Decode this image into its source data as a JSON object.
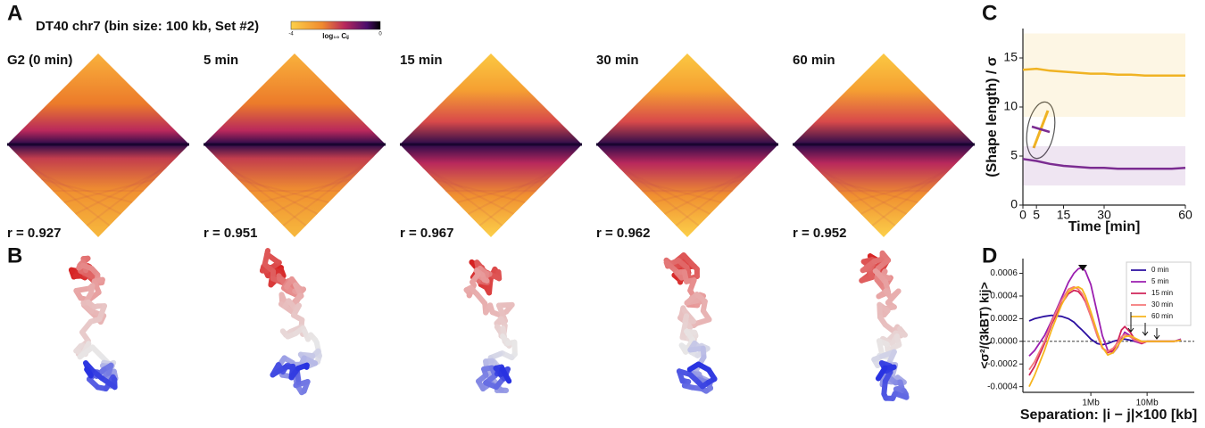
{
  "panel_labels": [
    "A",
    "B",
    "C",
    "D"
  ],
  "heatmaps": {
    "title": "DT40 chr7 (bin size: 100 kb, Set #2)",
    "colorbar": {
      "ticks": [
        -4,
        0
      ],
      "label": "log₁₀ Cᵢⱼ"
    },
    "maps": [
      {
        "label": "G2 (0 min)",
        "correlation": "r = 0.927"
      },
      {
        "label": "5 min",
        "correlation": "r = 0.951"
      },
      {
        "label": "15 min",
        "correlation": "r = 0.967"
      },
      {
        "label": "30 min",
        "correlation": "r = 0.962"
      },
      {
        "label": "60 min",
        "correlation": "r = 0.952"
      }
    ]
  },
  "chart_data": [
    {
      "type": "line",
      "ylabel": "(Shape length) / σ",
      "xlabel": "Time [min]",
      "x": [
        0,
        5,
        10,
        15,
        20,
        25,
        30,
        35,
        40,
        45,
        50,
        55,
        60
      ],
      "xlim": [
        0,
        60
      ],
      "xticks": [
        0,
        5,
        15,
        30,
        60
      ],
      "ylim": [
        0,
        18
      ],
      "yticks": [
        0,
        5,
        10,
        15
      ],
      "series": [
        {
          "color": "#f0b323",
          "values": [
            13.8,
            13.9,
            13.7,
            13.6,
            13.5,
            13.4,
            13.4,
            13.3,
            13.3,
            13.2,
            13.2,
            13.2,
            13.2
          ]
        },
        {
          "color": "#7b2c91",
          "values": [
            4.7,
            4.5,
            4.2,
            4.0,
            3.9,
            3.8,
            3.8,
            3.7,
            3.7,
            3.7,
            3.7,
            3.7,
            3.8
          ]
        }
      ]
    },
    {
      "type": "line",
      "ylabel": "<σ²/(3kBT) kij>",
      "xlabel": "Separation: |i − j|×100 [kb]",
      "xscale": "log",
      "x": [
        0.8,
        1,
        1.5,
        2,
        3,
        4,
        5,
        6,
        7,
        8,
        10,
        13,
        16,
        20,
        25,
        30,
        35,
        40,
        50,
        60,
        80,
        100,
        150,
        200,
        300,
        400
      ],
      "xlim": [
        0.62,
        690
      ],
      "xticks": [
        {
          "value": 10,
          "label": "1Mb"
        },
        {
          "value": 100,
          "label": "10Mb"
        }
      ],
      "ylim": [
        -0.00045,
        0.00073
      ],
      "yticks": [
        -0.0004,
        -0.0002,
        {
          "value": 0,
          "label": "0.0000"
        },
        0.0002,
        0.0004,
        0.0006
      ],
      "legend": "upper right",
      "series": [
        {
          "name": "0 min",
          "color": "#2b0fa0",
          "values": [
            0.00018,
            0.0002,
            0.00022,
            0.00023,
            0.00022,
            0.0002,
            0.00017,
            0.00013,
            0.0001,
            7e-05,
            2e-05,
            -2e-05,
            -3e-05,
            -2e-05,
            0,
            1e-05,
            2e-05,
            2e-05,
            1e-05,
            0,
            0,
            0,
            0,
            0,
            0,
            1e-05
          ]
        },
        {
          "name": "5 min",
          "color": "#9b1fb0",
          "values": [
            -0.00013,
            -8e-05,
            5e-05,
            0.00018,
            0.00038,
            0.00052,
            0.0006,
            0.00064,
            0.00065,
            0.00062,
            0.0005,
            0.00025,
            5e-05,
            -8e-05,
            -0.0001,
            -5e-05,
            3e-05,
            8e-05,
            5e-05,
            0,
            -2e-05,
            0,
            0,
            0,
            0,
            2e-05
          ]
        },
        {
          "name": "15 min",
          "color": "#d0245a",
          "values": [
            -0.0003,
            -0.00022,
            -2e-05,
            0.00015,
            0.00033,
            0.00042,
            0.00045,
            0.00044,
            0.0004,
            0.00035,
            0.00022,
            5e-05,
            -6e-05,
            -0.0001,
            -8e-05,
            0,
            0.0001,
            0.00013,
            8e-05,
            2e-05,
            -2e-05,
            0,
            0,
            0,
            0,
            1e-05
          ]
        },
        {
          "name": "30 min",
          "color": "#f4787a",
          "values": [
            -0.00025,
            -0.00018,
            0,
            0.00017,
            0.00036,
            0.00046,
            0.00048,
            0.00046,
            0.00042,
            0.00036,
            0.00022,
            5e-05,
            -6e-05,
            -9e-05,
            -6e-05,
            -1e-05,
            4e-05,
            6e-05,
            4e-05,
            1e-05,
            -1e-05,
            0,
            0,
            0,
            0,
            1e-05
          ]
        },
        {
          "name": "60 min",
          "color": "#f7b51f",
          "values": [
            -0.0004,
            -0.0003,
            -8e-05,
            0.0001,
            0.00032,
            0.00044,
            0.00047,
            0.00048,
            0.00046,
            0.0004,
            0.00026,
            8e-05,
            -5e-05,
            -0.00012,
            -0.0001,
            -4e-05,
            1e-05,
            4e-05,
            5e-05,
            3e-05,
            0,
            0,
            0,
            0,
            0,
            1e-05
          ]
        }
      ]
    }
  ]
}
